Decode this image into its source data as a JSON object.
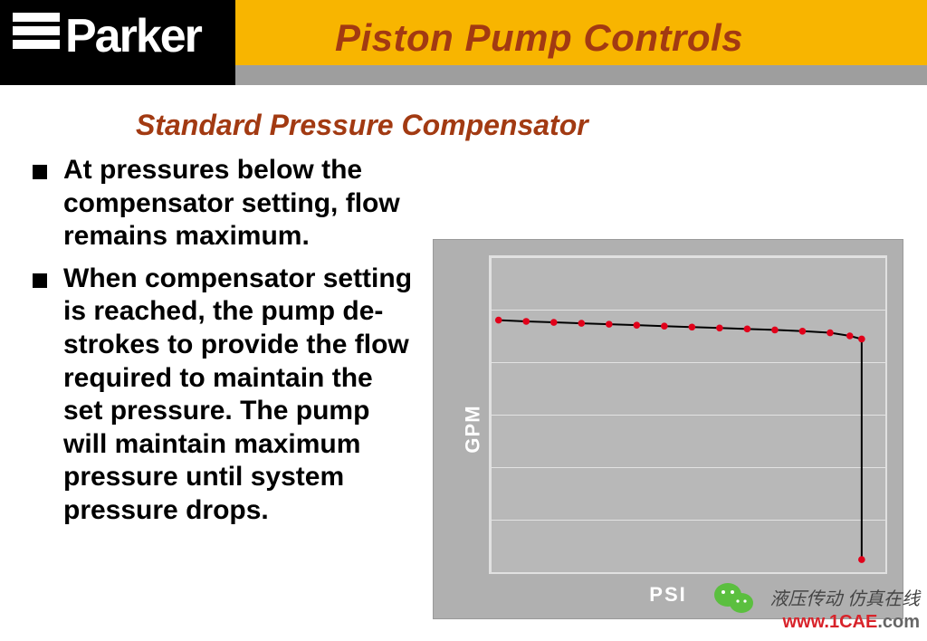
{
  "header": {
    "title": "Piston Pump Controls",
    "title_color": "#a23a12",
    "title_fontsize": 42,
    "logo_text": "Parker",
    "yellow": "#f8b500",
    "black": "#000000",
    "gray_bar": "#9e9e9e"
  },
  "subtitle": {
    "text": "Standard Pressure Compensator",
    "color": "#a23a12",
    "fontsize": 32
  },
  "bullets": {
    "fontsize": 30,
    "color": "#000000",
    "items": [
      "At pressures below the compensator setting, flow remains  maximum.",
      "When compensator setting is reached, the pump de-strokes to provide the flow required to maintain the set pressure. The pump will maintain maximum pressure until system pressure drops."
    ]
  },
  "chart": {
    "type": "line",
    "background_color": "#b0b0b0",
    "plot_background": "#b8b8b8",
    "plot_border_color": "#e0e0e0",
    "grid_color": "#e2e2e2",
    "xlabel": "PSI",
    "ylabel": "GPM",
    "label_color": "#ffffff",
    "label_fontsize": 22,
    "xlim": [
      0,
      100
    ],
    "ylim": [
      0,
      100
    ],
    "h_grid_positions": [
      0,
      16.67,
      33.33,
      50,
      66.67,
      83.33,
      100
    ],
    "line_color": "#000000",
    "line_width": 2,
    "marker_color": "#e1001a",
    "marker_radius": 3.8,
    "points": [
      {
        "x": 2,
        "y": 80
      },
      {
        "x": 9,
        "y": 79.6
      },
      {
        "x": 16,
        "y": 79.3
      },
      {
        "x": 23,
        "y": 79.0
      },
      {
        "x": 30,
        "y": 78.7
      },
      {
        "x": 37,
        "y": 78.4
      },
      {
        "x": 44,
        "y": 78.1
      },
      {
        "x": 51,
        "y": 77.8
      },
      {
        "x": 58,
        "y": 77.5
      },
      {
        "x": 65,
        "y": 77.2
      },
      {
        "x": 72,
        "y": 76.9
      },
      {
        "x": 79,
        "y": 76.5
      },
      {
        "x": 86,
        "y": 76.0
      },
      {
        "x": 91,
        "y": 75.0
      },
      {
        "x": 94,
        "y": 74.0
      },
      {
        "x": 94,
        "y": 4
      }
    ]
  },
  "footer": {
    "line1": "液压传动  仿真在线",
    "url_red": "www.1CAE",
    "url_suffix": ".com",
    "wechat_fill": "#5bbf3f"
  }
}
